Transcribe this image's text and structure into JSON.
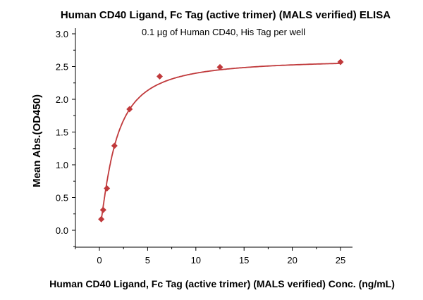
{
  "chart_data": {
    "type": "scatter",
    "title": "Human CD40 Ligand, Fc Tag (active trimer) (MALS verified) ELISA",
    "subtitle": "0.1 µg of Human CD40, His Tag per well",
    "xlabel": "Human CD40 Ligand, Fc Tag (active trimer) (MALS verified) Conc. (ng/mL)",
    "ylabel": "Mean Abs.(OD450)",
    "xlim": [
      -2.5,
      26.5
    ],
    "ylim": [
      -0.25,
      3.0
    ],
    "xticks": [
      "0",
      "5",
      "10",
      "15",
      "20",
      "25"
    ],
    "yticks": [
      "0.0",
      "0.5",
      "1.0",
      "1.5",
      "2.0",
      "2.5",
      "3.0"
    ],
    "grid": false,
    "series": [
      {
        "name": "Human CD40 Ligand, Fc Tag",
        "color": "#c0393b",
        "marker": "diamond",
        "x": [
          0.195,
          0.39,
          0.78,
          1.56,
          3.125,
          6.25,
          12.5,
          25
        ],
        "y": [
          0.17,
          0.31,
          0.64,
          1.29,
          1.85,
          2.35,
          2.49,
          2.57
        ],
        "fit": {
          "model": "4PL",
          "bottom": 0.0,
          "top": 2.62,
          "ec50": 1.6,
          "hill": 1.3
        }
      }
    ]
  }
}
